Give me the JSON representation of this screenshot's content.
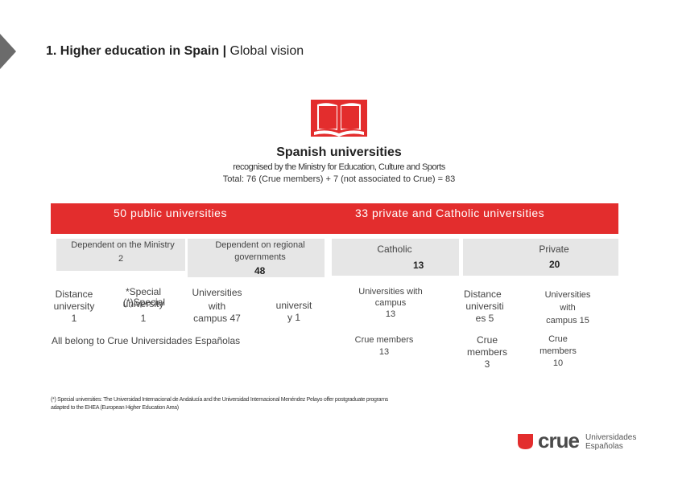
{
  "header": {
    "title_bold": "1. Higher education in Spain |",
    "title_light": "Global vision"
  },
  "intro": {
    "heading": "Spanish universities",
    "subtitle": "recognised by the Ministry for Education, Culture and Sports",
    "total": "Total: 76 (Crue members) + 7 (not associated to Crue) = 83"
  },
  "public": {
    "bar_label": "50 public universities",
    "ministry": {
      "label": "Dependent on the Ministry",
      "count": "2"
    },
    "regional": {
      "label": "Dependent on regional governments",
      "count": "48"
    },
    "distance": {
      "line1": "Distance",
      "line2": "university",
      "count": "1"
    },
    "special": {
      "line1": "*Special",
      "overlap": "(*)Special",
      "line2": "university",
      "count": "1"
    },
    "campus": {
      "line1": "Universities",
      "line2": "with",
      "line3": "campus 47"
    },
    "univ": {
      "line1": "universit",
      "line2": "y 1"
    },
    "all_belong": "All belong to Crue Universidades Españolas"
  },
  "private": {
    "bar_label": "33 private and Catholic universities",
    "catholic": {
      "label": "Catholic",
      "count": "13"
    },
    "private": {
      "label": "Private",
      "count": "20"
    },
    "cat_campus": {
      "line1": "Universities with",
      "line2": "campus",
      "line3": "13"
    },
    "cat_crue": {
      "line1": "Crue members",
      "line2": "13"
    },
    "distance": {
      "line1": "Distance",
      "line2": "universiti",
      "line3": "es 5"
    },
    "priv_campus": {
      "line1": "Universities",
      "line2": "with",
      "line3": "campus 15"
    },
    "dist_crue": {
      "line1": "Crue",
      "line2": "members",
      "line3": "3"
    },
    "priv_crue": {
      "line1": "Crue",
      "line2": "members",
      "line3": "10"
    }
  },
  "footnote": "(*) Special universities: The Universidad Internacional de Andalucía and the Universidad Internacional Menéndez Pelayo offer postgraduate programs adapted to the EHEA (European Higher Education Area)",
  "logo": {
    "name": "crue",
    "line1": "Universidades",
    "line2": "Españolas"
  },
  "colors": {
    "accent": "#e32d2d",
    "gray_box": "#e6e6e6",
    "arrow": "#6b6b6b"
  }
}
